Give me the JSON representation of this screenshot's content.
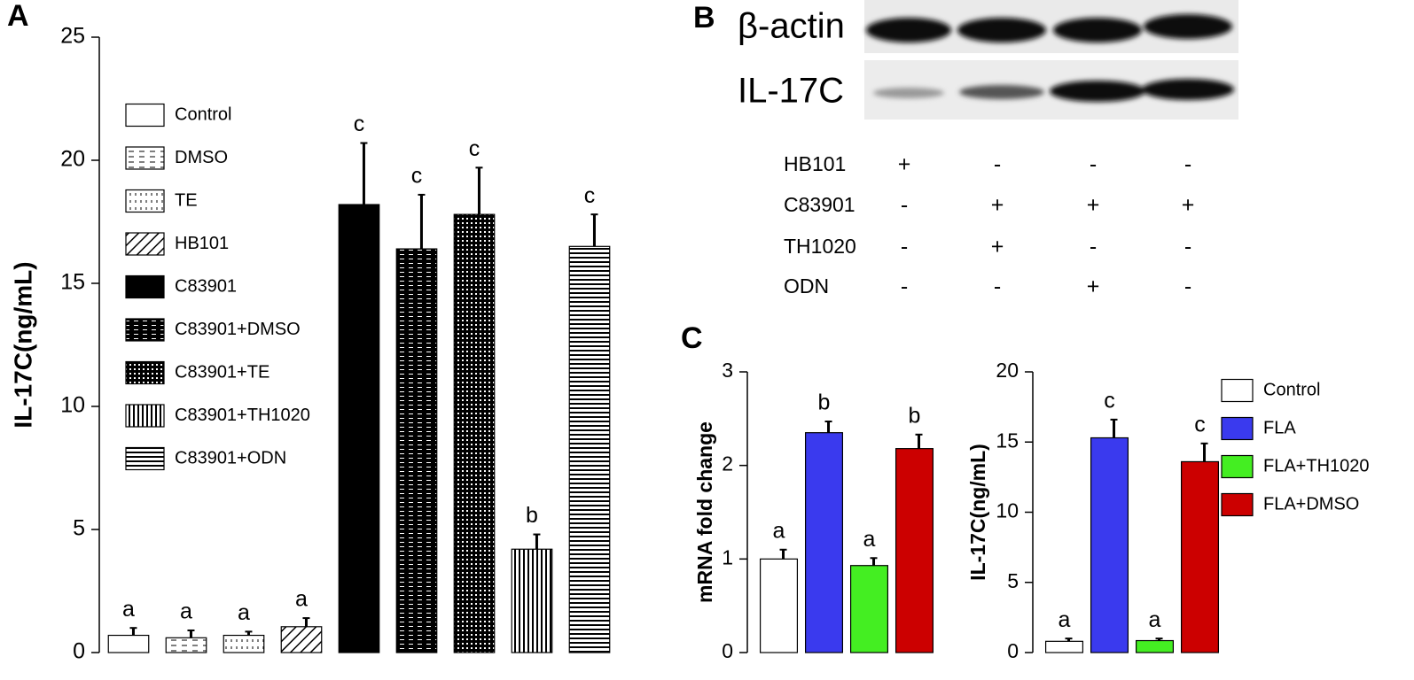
{
  "chart_data": [
    {
      "panel": "A",
      "type": "bar",
      "y_label": "IL-17C(ng/mL)",
      "legend": "upper left",
      "categories": [
        "Control",
        "DMSO",
        "TE",
        "HB101",
        "C83901",
        "C83901+DMSO",
        "C83901+TE",
        "C83901+TH1020",
        "C83901+ODN"
      ],
      "values": [
        0.7,
        0.6,
        0.7,
        1.05,
        18.2,
        16.4,
        17.8,
        4.2,
        16.5
      ],
      "errors": [
        0.3,
        0.3,
        0.15,
        0.35,
        2.5,
        2.2,
        1.9,
        0.6,
        1.3
      ],
      "annotations": [
        "a",
        "a",
        "a",
        "a",
        "c",
        "c",
        "c",
        "b",
        "c"
      ],
      "fills": [
        "white",
        "hdash",
        "dots",
        "diagonal",
        "black",
        "dense-dash",
        "checker",
        "vertical",
        "horizontal"
      ],
      "ylim": [
        0,
        25
      ],
      "yticks": [
        0,
        5,
        10,
        15,
        20,
        25
      ]
    },
    {
      "panel": "C",
      "type": "bar",
      "y_label": "mRNA fold change",
      "colors": [
        "#ffffff",
        "#3a3aee",
        "#44ee22",
        "#cc0000"
      ],
      "values": [
        1.0,
        2.35,
        0.93,
        2.18
      ],
      "errors": [
        0.1,
        0.12,
        0.08,
        0.15
      ],
      "annotations": [
        "a",
        "b",
        "a",
        "b"
      ],
      "ylim": [
        0,
        3
      ],
      "yticks": [
        0,
        1,
        2,
        3
      ]
    },
    {
      "type": "bar",
      "y_label": "IL-17C(ng/mL)",
      "legend": "right",
      "categories": [
        "Control",
        "FLA",
        "FLA+TH1020",
        "FLA+DMSO"
      ],
      "colors": [
        "#ffffff",
        "#3a3aee",
        "#44ee22",
        "#cc0000"
      ],
      "values": [
        0.8,
        15.3,
        0.85,
        13.6
      ],
      "errors": [
        0.2,
        1.3,
        0.15,
        1.3
      ],
      "annotations": [
        "a",
        "c",
        "a",
        "c"
      ],
      "ylim": [
        0,
        20
      ],
      "yticks": [
        0,
        5,
        10,
        15,
        20
      ]
    }
  ],
  "blot": {
    "panel": "B",
    "bands": [
      "β-actin",
      "IL-17C"
    ],
    "rows": [
      {
        "label": "HB101",
        "cells": [
          "+",
          "-",
          "-",
          "-"
        ]
      },
      {
        "label": "C83901",
        "cells": [
          "-",
          "+",
          "+",
          "+"
        ]
      },
      {
        "label": "TH1020",
        "cells": [
          "-",
          "+",
          "-",
          "-"
        ]
      },
      {
        "label": "ODN",
        "cells": [
          "-",
          "-",
          "+",
          "-"
        ]
      }
    ]
  }
}
